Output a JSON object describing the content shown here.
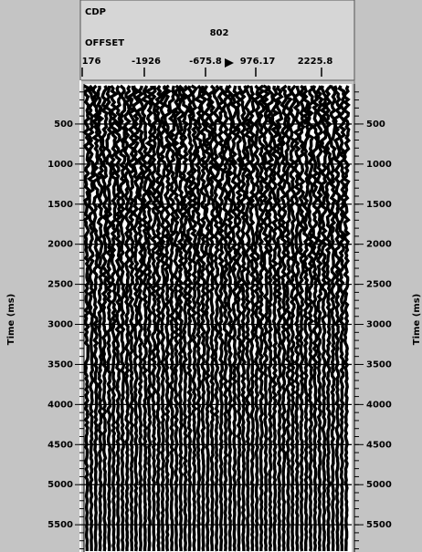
{
  "header": {
    "cdp_label": "CDP",
    "cdp_value": "802",
    "offset_label": "OFFSET",
    "offset_ticks": [
      "176",
      "-1926",
      "-675.8",
      "976.17",
      "2225.8"
    ]
  },
  "time_axis": {
    "label": "Time (ms)",
    "ylim": [
      0,
      5840
    ],
    "ticks": [
      500,
      1000,
      1500,
      2000,
      2500,
      3000,
      3500,
      4000,
      4500,
      5000,
      5500
    ]
  }
}
